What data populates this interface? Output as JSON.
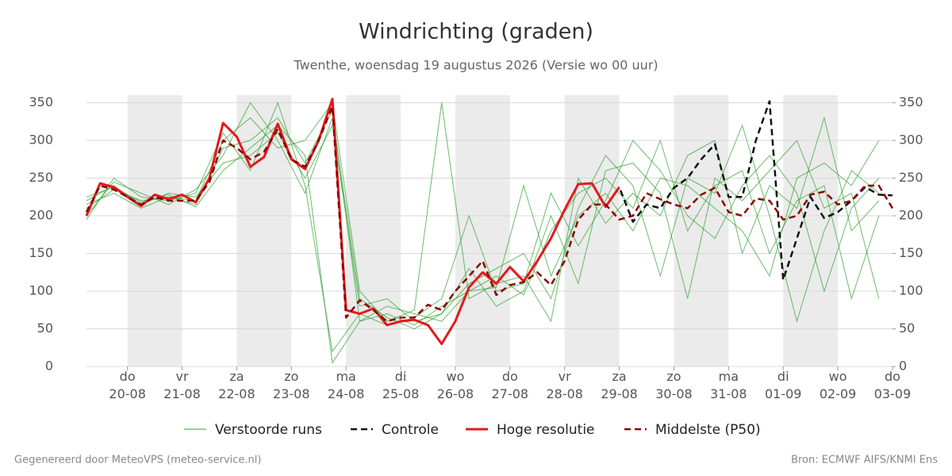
{
  "chart_data": {
    "type": "line",
    "title": "Windrichting (graden)",
    "subtitle": "Twenthe, woensdag 19 augustus 2026 (Versie wo 00 uur)",
    "footer_left": "Gegenereerd door MeteoVPS (meteo-service.nl)",
    "footer_right": "Bron: ECMWF AIFS/KNMI Ens",
    "xlim": [
      0.25,
      15
    ],
    "xticks": [
      {
        "value": 1,
        "label": "do\n20-08"
      },
      {
        "value": 2,
        "label": "vr\n21-08"
      },
      {
        "value": 3,
        "label": "za\n22-08"
      },
      {
        "value": 4,
        "label": "zo\n23-08"
      },
      {
        "value": 5,
        "label": "ma\n24-08"
      },
      {
        "value": 6,
        "label": "di\n25-08"
      },
      {
        "value": 7,
        "label": "wo\n26-08"
      },
      {
        "value": 8,
        "label": "do\n27-08"
      },
      {
        "value": 9,
        "label": "vr\n28-08"
      },
      {
        "value": 10,
        "label": "za\n29-08"
      },
      {
        "value": 11,
        "label": "zo\n30-08"
      },
      {
        "value": 12,
        "label": "ma\n31-08"
      },
      {
        "value": 13,
        "label": "di\n01-09"
      },
      {
        "value": 14,
        "label": "wo\n02-09"
      },
      {
        "value": 15,
        "label": "do\n03-09"
      }
    ],
    "ylim": [
      0,
      360
    ],
    "yticks": [
      0,
      50,
      100,
      150,
      200,
      250,
      300,
      350
    ],
    "y2lim": [
      0,
      360
    ],
    "y2ticks": [
      0,
      50,
      100,
      150,
      200,
      250,
      300,
      350
    ],
    "grid": true,
    "members": {
      "name": "Verstoorde runs",
      "color": "#2ca02c",
      "x": [
        0.25,
        0.75,
        1.25,
        1.75,
        2.25,
        2.75,
        3.25,
        3.75,
        4.25,
        4.75,
        5.25,
        5.75,
        6.25,
        6.75,
        7.25,
        7.75,
        8.25,
        8.75,
        9.25,
        9.75,
        10.25,
        10.75,
        11.25,
        11.75,
        12.25,
        12.75,
        13.25,
        13.75,
        14.25,
        14.75
      ],
      "runs": [
        [
          210,
          235,
          220,
          225,
          215,
          290,
          300,
          330,
          270,
          340,
          60,
          70,
          55,
          80,
          100,
          120,
          95,
          180,
          230,
          250,
          210,
          300,
          180,
          240,
          260,
          150,
          220,
          240,
          90,
          200
        ],
        [
          220,
          240,
          215,
          230,
          225,
          270,
          280,
          310,
          250,
          320,
          80,
          90,
          60,
          70,
          110,
          130,
          150,
          90,
          210,
          280,
          240,
          120,
          250,
          230,
          320,
          200,
          60,
          180,
          260,
          230
        ],
        [
          195,
          250,
          225,
          220,
          230,
          310,
          260,
          350,
          240,
          20,
          70,
          55,
          65,
          90,
          200,
          100,
          110,
          230,
          160,
          220,
          300,
          260,
          200,
          170,
          240,
          280,
          230,
          100,
          210,
          250
        ],
        [
          215,
          230,
          210,
          225,
          220,
          300,
          330,
          290,
          300,
          350,
          100,
          60,
          75,
          350,
          90,
          110,
          120,
          60,
          250,
          190,
          230,
          200,
          280,
          300,
          150,
          240,
          210,
          330,
          180,
          220
        ],
        [
          200,
          245,
          230,
          215,
          235,
          280,
          350,
          300,
          230,
          330,
          90,
          65,
          50,
          70,
          130,
          80,
          100,
          200,
          110,
          260,
          270,
          230,
          90,
          250,
          220,
          260,
          300,
          210,
          230,
          90
        ],
        [
          225,
          238,
          218,
          228,
          212,
          260,
          290,
          320,
          280,
          5,
          60,
          80,
          70,
          60,
          100,
          105,
          240,
          120,
          200,
          230,
          180,
          250,
          240,
          210,
          180,
          120,
          250,
          270,
          240,
          300
        ]
      ]
    },
    "series": [
      {
        "name": "Controle",
        "color": "#111111",
        "style": "dashed",
        "x": [
          0.25,
          0.5,
          0.75,
          1,
          1.25,
          1.5,
          1.75,
          2,
          2.25,
          2.5,
          2.75,
          3,
          3.25,
          3.5,
          3.75,
          4,
          4.25,
          4.5,
          4.75,
          5,
          5.25,
          5.5,
          5.75,
          6,
          6.25,
          6.5,
          6.75,
          7,
          7.25,
          7.5,
          7.75,
          8,
          8.25,
          8.5,
          8.75,
          9,
          9.25,
          9.5,
          9.75,
          10,
          10.25,
          10.5,
          10.75,
          11,
          11.25,
          11.5,
          11.75,
          12,
          12.25,
          12.5,
          12.75,
          13,
          13.25,
          13.5,
          13.75,
          14,
          14.25,
          14.5,
          14.75,
          15
        ],
        "values": [
          200,
          243,
          238,
          225,
          213,
          228,
          222,
          228,
          218,
          250,
          323,
          305,
          265,
          278,
          322,
          275,
          262,
          300,
          355,
          75,
          70,
          77,
          55,
          60,
          62,
          55,
          30,
          60,
          105,
          125,
          110,
          132,
          113,
          140,
          170,
          208,
          242,
          243,
          212,
          238,
          192,
          215,
          210,
          237,
          250,
          275,
          295,
          225,
          225,
          300,
          352,
          115,
          170,
          225,
          197,
          205,
          220,
          238,
          228,
          227
        ]
      },
      {
        "name": "Hoge resolutie",
        "color": "#e31a1c",
        "style": "solid",
        "x": [
          0.25,
          0.5,
          0.75,
          1,
          1.25,
          1.5,
          1.75,
          2,
          2.25,
          2.5,
          2.75,
          3,
          3.25,
          3.5,
          3.75,
          4,
          4.25,
          4.5,
          4.75,
          5,
          5.25,
          5.5,
          5.75,
          6,
          6.25,
          6.5,
          6.75,
          7,
          7.25,
          7.5,
          7.75,
          8,
          8.25,
          8.5,
          8.75,
          9,
          9.25,
          9.5,
          9.75,
          10
        ],
        "values": [
          200,
          243,
          238,
          225,
          213,
          228,
          222,
          228,
          218,
          250,
          323,
          305,
          265,
          278,
          322,
          275,
          262,
          300,
          355,
          75,
          70,
          77,
          55,
          60,
          62,
          55,
          30,
          60,
          105,
          125,
          110,
          132,
          113,
          140,
          170,
          208,
          242,
          243,
          212,
          238
        ]
      },
      {
        "name": "Middelste (P50)",
        "color": "#8b0000",
        "style": "dashed",
        "x": [
          0.25,
          0.5,
          0.75,
          1,
          1.25,
          1.5,
          1.75,
          2,
          2.25,
          2.5,
          2.75,
          3,
          3.25,
          3.5,
          3.75,
          4,
          4.25,
          4.5,
          4.75,
          5,
          5.25,
          5.5,
          5.75,
          6,
          6.25,
          6.5,
          6.75,
          7,
          7.25,
          7.5,
          7.75,
          8,
          8.25,
          8.5,
          8.75,
          9,
          9.25,
          9.5,
          9.75,
          10,
          10.25,
          10.5,
          10.75,
          11,
          11.25,
          11.5,
          11.75,
          12,
          12.25,
          12.5,
          12.75,
          13,
          13.25,
          13.5,
          13.75,
          14,
          14.25,
          14.5,
          14.75,
          15
        ],
        "values": [
          205,
          240,
          235,
          225,
          215,
          225,
          220,
          220,
          220,
          245,
          300,
          290,
          275,
          285,
          315,
          275,
          265,
          300,
          345,
          65,
          88,
          75,
          60,
          65,
          65,
          82,
          75,
          100,
          120,
          140,
          95,
          108,
          112,
          125,
          108,
          140,
          195,
          215,
          215,
          195,
          200,
          230,
          222,
          215,
          210,
          228,
          237,
          205,
          200,
          223,
          220,
          195,
          200,
          228,
          232,
          215,
          220,
          240,
          240,
          210
        ]
      }
    ]
  }
}
